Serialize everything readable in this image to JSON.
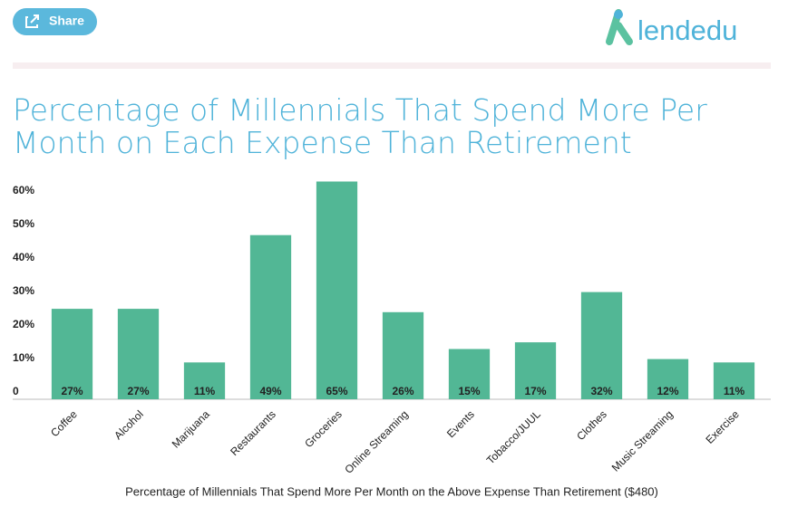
{
  "header": {
    "share": "Share",
    "logo": "lendedu"
  },
  "chart_data": {
    "type": "bar",
    "title": "Percentage of Millennials That Spend More Per Month on Each Expense Than Retirement",
    "x_label": "Percentage of Millennials That Spend More Per Month on the Above Expense Than Retirement ($480)",
    "categories": [
      "Coffee",
      "Alcohol",
      "Marijuana",
      "Restaurants",
      "Groceries",
      "Online Streaming",
      "Events",
      "Tobacco/JUUL",
      "Clothes",
      "Music Streaming",
      "Exercise"
    ],
    "values": [
      27,
      27,
      11,
      49,
      65,
      26,
      15,
      17,
      32,
      12,
      11
    ],
    "value_labels": [
      "27%",
      "27%",
      "11%",
      "49%",
      "65%",
      "26%",
      "15%",
      "17%",
      "32%",
      "12%",
      "11%"
    ],
    "color": "#52b795",
    "ylim": [
      0,
      65
    ],
    "yticks": [
      0,
      {
        "value": 10,
        "label": "10%"
      },
      {
        "value": 20,
        "label": "20%"
      },
      {
        "value": 30,
        "label": "30%"
      },
      {
        "value": 40,
        "label": "40%"
      },
      {
        "value": 50,
        "label": "50%"
      },
      {
        "value": 60,
        "label": "60%"
      }
    ],
    "grid": false
  }
}
